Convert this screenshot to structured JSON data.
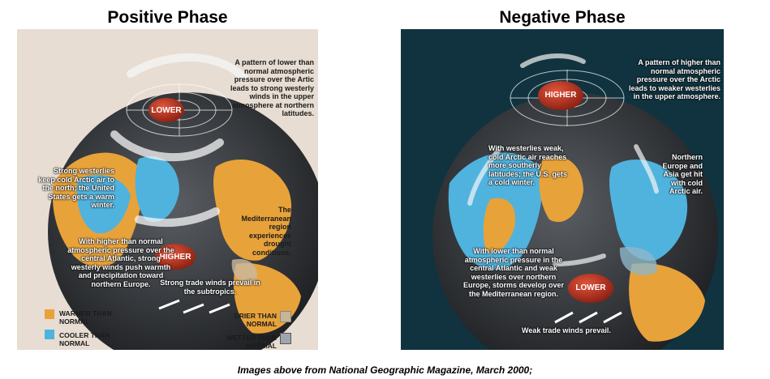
{
  "positive": {
    "title": "Positive Phase",
    "pressure_high_label": "LOWER",
    "pressure_low_label": "HIGHER",
    "notes": {
      "arctic": "A pattern of lower than normal atmospheric pressure over the Artic leads to strong westerly winds in the upper atmosphere at northern latitudes.",
      "us": "Strong westerlies keep cold Arctic air to the north; the United States gets a warm winter.",
      "med": "The Mediterranean region experiences drought conditions.",
      "atlantic": "With higher than normal atmospheric pressure over the central Atlantic, strong westerly winds push warmth and precipitation toward northern Europe.",
      "trade": "Strong trade winds prevail in the subtropics."
    },
    "legend": {
      "warmer": "WARMER THAN NORMAL",
      "cooler": "COOLER THAN NORMAL",
      "drier": "DRIER THAN NORMAL",
      "wetter": "WETTER THAN NORMAL"
    }
  },
  "negative": {
    "title": "Negative Phase",
    "pressure_high_label": "HIGHER",
    "pressure_low_label": "LOWER",
    "notes": {
      "arctic": "A pattern of higher than normal atmospheric pressure over the Arctic leads to weaker westerlies in the upper atmosphere.",
      "us": "With westerlies weak, cold Arctic air reaches more southerly latitudes; the U.S. gets a cold winter.",
      "europe": "Northern Europe and Asia get hit with cold Arctic air.",
      "atlantic": "With lower than normal atmospheric pressure in the central Atlantic and weak westerlies over northern Europe, storms develop over the Mediterranean region.",
      "trade": "Weak trade winds prevail."
    }
  },
  "caption": "Images above from National Geographic Magazine, March 2000;",
  "colors": {
    "warmer": "#e8a23a",
    "cooler": "#4fb3de",
    "pressure_center": "#b8321e",
    "ocean": "#3c3f44"
  }
}
